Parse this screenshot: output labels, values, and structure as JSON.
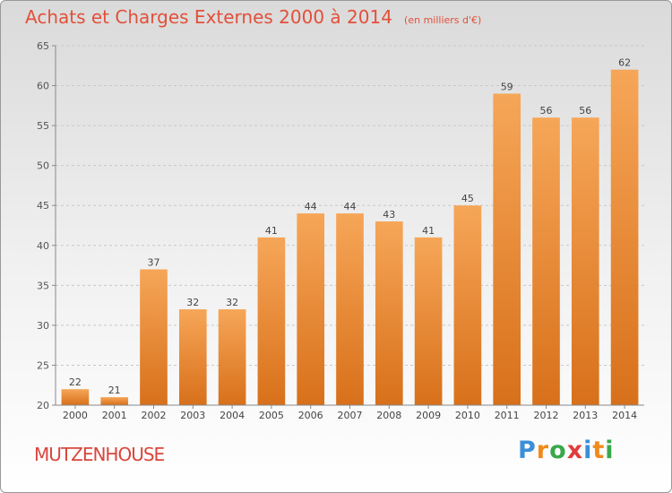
{
  "title": "Achats et Charges Externes 2000 à 2014",
  "unit": "(en milliers d'€)",
  "city": "MUTZENHOUSE",
  "logo": {
    "letters": [
      "P",
      "r",
      "o",
      "x",
      "i",
      "t",
      "i"
    ],
    "colors": [
      "#3a8fd8",
      "#f08a1c",
      "#3aa84a",
      "#e23b3b",
      "#3a8fd8",
      "#f08a1c",
      "#3aa84a"
    ]
  },
  "chart_data": {
    "type": "bar",
    "categories": [
      "2000",
      "2001",
      "2002",
      "2003",
      "2004",
      "2005",
      "2006",
      "2007",
      "2008",
      "2009",
      "2010",
      "2011",
      "2012",
      "2013",
      "2014"
    ],
    "values": [
      22,
      21,
      37,
      32,
      32,
      41,
      44,
      44,
      43,
      41,
      45,
      59,
      56,
      56,
      62
    ],
    "ylim": [
      20,
      65
    ],
    "yticks": [
      20,
      25,
      30,
      35,
      40,
      45,
      50,
      55,
      60,
      65
    ],
    "grid": true,
    "bar_color": "#f0902f"
  }
}
